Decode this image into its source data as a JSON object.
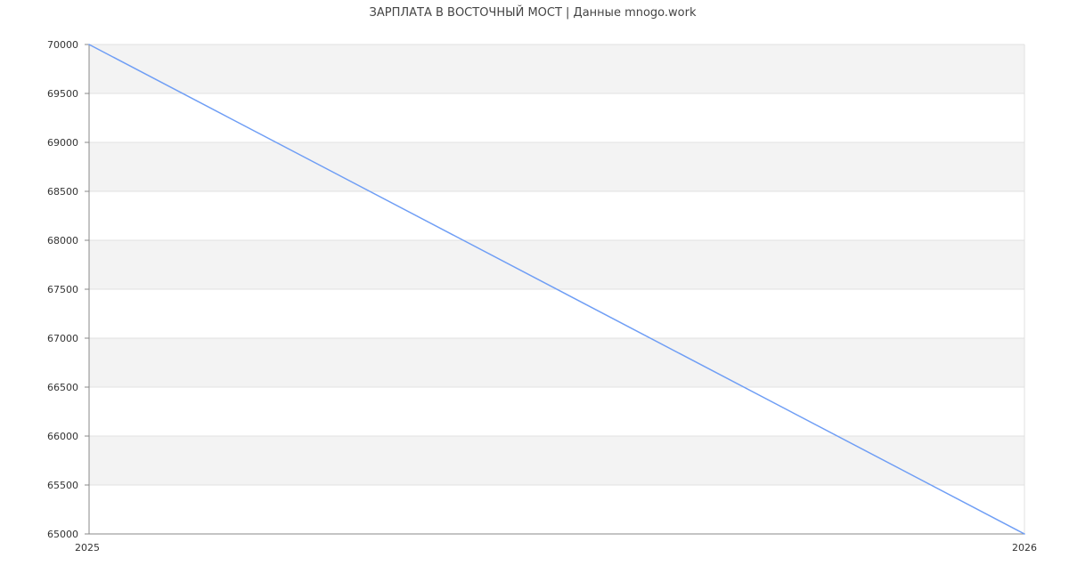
{
  "chart_data": {
    "type": "line",
    "title": "ЗАРПЛАТА В ВОСТОЧНЫЙ МОСТ | Данные mnogo.work",
    "xlabel": "",
    "ylabel": "",
    "x": [
      "2025",
      "2026"
    ],
    "series": [
      {
        "values": [
          70000,
          65000
        ]
      }
    ],
    "ylim": [
      65000,
      70000
    ],
    "yticks": [
      65000,
      65500,
      66000,
      66500,
      67000,
      67500,
      68000,
      68500,
      69000,
      69500,
      70000
    ],
    "grid": true,
    "legend": "none",
    "colors": {
      "line": "#6f9ef5",
      "band": "#f3f3f3",
      "grid": "#e0e0e0",
      "axis": "#888888",
      "text": "#333333"
    }
  }
}
